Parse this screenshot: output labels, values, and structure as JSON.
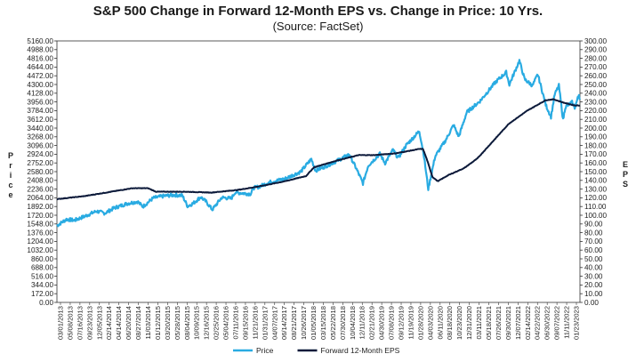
{
  "chart_data": {
    "type": "line",
    "title": "S&P 500 Change in Forward 12-Month EPS vs. Change in Price: 10 Yrs.",
    "subtitle": "(Source: FactSet)",
    "ylabel_left": "Price",
    "ylabel_right": "EPS",
    "ylim_left": [
      0,
      5160
    ],
    "ylim_right": [
      0,
      300
    ],
    "left_ticks": [
      "0.00",
      "172.00",
      "344.00",
      "516.00",
      "688.00",
      "860.00",
      "1032.00",
      "1204.00",
      "1376.00",
      "1548.00",
      "1720.00",
      "1892.00",
      "2064.00",
      "2236.00",
      "2408.00",
      "2580.00",
      "2752.00",
      "2924.00",
      "3096.00",
      "3268.00",
      "3440.00",
      "3612.00",
      "3784.00",
      "3956.00",
      "4128.00",
      "4300.00",
      "4472.00",
      "4644.00",
      "4816.00",
      "4988.00",
      "5160.00"
    ],
    "right_ticks": [
      "0.00",
      "10.00",
      "20.00",
      "30.00",
      "40.00",
      "50.00",
      "60.00",
      "70.00",
      "80.00",
      "90.00",
      "100.00",
      "110.00",
      "120.00",
      "130.00",
      "140.00",
      "150.00",
      "160.00",
      "170.00",
      "180.00",
      "190.00",
      "200.00",
      "210.00",
      "220.00",
      "230.00",
      "240.00",
      "250.00",
      "260.00",
      "270.00",
      "280.00",
      "290.00",
      "300.00"
    ],
    "x_labels": [
      "03/01/2013",
      "05/08/2013",
      "07/16/2013",
      "09/23/2013",
      "12/05/2013",
      "02/14/2014",
      "04/14/2014",
      "06/20/2014",
      "08/27/2014",
      "11/03/2014",
      "01/12/2015",
      "03/20/2015",
      "05/28/2015",
      "08/04/2015",
      "10/09/2015",
      "12/16/2015",
      "02/25/2016",
      "05/04/2016",
      "07/11/2016",
      "09/15/2016",
      "11/21/2016",
      "01/31/2017",
      "04/07/2017",
      "06/14/2017",
      "08/21/2017",
      "10/26/2017",
      "01/05/2018",
      "03/15/2018",
      "05/22/2018",
      "07/30/2018",
      "10/04/2018",
      "12/11/2018",
      "02/21/2019",
      "04/30/2019",
      "07/08/2019",
      "09/12/2019",
      "11/19/2019",
      "01/28/2020",
      "04/03/2020",
      "06/11/2020",
      "08/18/2020",
      "10/23/2020",
      "12/31/2020",
      "03/11/2021",
      "05/18/2021",
      "07/26/2021",
      "09/30/2021",
      "12/07/2021",
      "02/14/2022",
      "04/22/2022",
      "06/30/2022",
      "09/07/2022",
      "11/11/2022",
      "01/23/2023"
    ],
    "x_range": [
      2013.17,
      2023.1
    ],
    "series": [
      {
        "name": "Price",
        "axis": "left",
        "color": "#29abe2",
        "points": [
          [
            2013.17,
            1515
          ],
          [
            2013.35,
            1640
          ],
          [
            2013.5,
            1620
          ],
          [
            2013.7,
            1700
          ],
          [
            2013.92,
            1800
          ],
          [
            2014.08,
            1760
          ],
          [
            2014.25,
            1860
          ],
          [
            2014.5,
            1950
          ],
          [
            2014.7,
            1990
          ],
          [
            2014.8,
            1890
          ],
          [
            2015.0,
            2060
          ],
          [
            2015.2,
            2100
          ],
          [
            2015.4,
            2120
          ],
          [
            2015.55,
            2110
          ],
          [
            2015.65,
            1900
          ],
          [
            2015.75,
            1950
          ],
          [
            2015.9,
            2080
          ],
          [
            2016.0,
            1990
          ],
          [
            2016.12,
            1830
          ],
          [
            2016.3,
            2070
          ],
          [
            2016.48,
            2050
          ],
          [
            2016.55,
            2170
          ],
          [
            2016.85,
            2140
          ],
          [
            2016.9,
            2260
          ],
          [
            2017.0,
            2280
          ],
          [
            2017.2,
            2370
          ],
          [
            2017.5,
            2440
          ],
          [
            2017.8,
            2580
          ],
          [
            2018.0,
            2830
          ],
          [
            2018.08,
            2600
          ],
          [
            2018.3,
            2700
          ],
          [
            2018.5,
            2800
          ],
          [
            2018.72,
            2920
          ],
          [
            2018.85,
            2650
          ],
          [
            2018.98,
            2350
          ],
          [
            2019.08,
            2700
          ],
          [
            2019.3,
            2930
          ],
          [
            2019.4,
            2750
          ],
          [
            2019.55,
            3010
          ],
          [
            2019.65,
            2850
          ],
          [
            2019.8,
            3100
          ],
          [
            2020.05,
            3380
          ],
          [
            2020.13,
            2950
          ],
          [
            2020.22,
            2240
          ],
          [
            2020.35,
            2880
          ],
          [
            2020.55,
            3200
          ],
          [
            2020.7,
            3500
          ],
          [
            2020.8,
            3270
          ],
          [
            2020.95,
            3750
          ],
          [
            2021.2,
            3970
          ],
          [
            2021.5,
            4350
          ],
          [
            2021.7,
            4540
          ],
          [
            2021.76,
            4300
          ],
          [
            2021.95,
            4770
          ],
          [
            2022.05,
            4400
          ],
          [
            2022.2,
            4280
          ],
          [
            2022.3,
            4500
          ],
          [
            2022.45,
            3900
          ],
          [
            2022.55,
            3660
          ],
          [
            2022.62,
            4100
          ],
          [
            2022.7,
            4280
          ],
          [
            2022.78,
            3600
          ],
          [
            2022.82,
            3850
          ],
          [
            2022.95,
            3950
          ],
          [
            2023.0,
            3840
          ],
          [
            2023.08,
            4100
          ],
          [
            2023.1,
            4000
          ]
        ]
      },
      {
        "name": "Forward 12-Month EPS",
        "axis": "right",
        "color": "#0c1a3a",
        "points": [
          [
            2013.17,
            118.5
          ],
          [
            2013.7,
            122
          ],
          [
            2014.2,
            127
          ],
          [
            2014.6,
            131
          ],
          [
            2014.9,
            131
          ],
          [
            2015.05,
            127
          ],
          [
            2015.6,
            127
          ],
          [
            2016.1,
            126
          ],
          [
            2016.6,
            129
          ],
          [
            2017.0,
            133
          ],
          [
            2017.5,
            139
          ],
          [
            2017.9,
            145
          ],
          [
            2018.05,
            155
          ],
          [
            2018.5,
            163
          ],
          [
            2018.9,
            169
          ],
          [
            2019.2,
            169
          ],
          [
            2019.6,
            171
          ],
          [
            2020.05,
            176
          ],
          [
            2020.12,
            176
          ],
          [
            2020.2,
            163
          ],
          [
            2020.3,
            144
          ],
          [
            2020.4,
            139
          ],
          [
            2020.6,
            146
          ],
          [
            2020.9,
            154
          ],
          [
            2021.15,
            165
          ],
          [
            2021.45,
            185
          ],
          [
            2021.75,
            205
          ],
          [
            2022.1,
            220
          ],
          [
            2022.45,
            232
          ],
          [
            2022.6,
            233
          ],
          [
            2022.8,
            229
          ],
          [
            2023.0,
            226
          ],
          [
            2023.1,
            226
          ]
        ]
      }
    ],
    "legend": [
      {
        "name": "Price",
        "color": "#29abe2"
      },
      {
        "name": "Forward 12-Month EPS",
        "color": "#0c1a3a"
      }
    ]
  }
}
